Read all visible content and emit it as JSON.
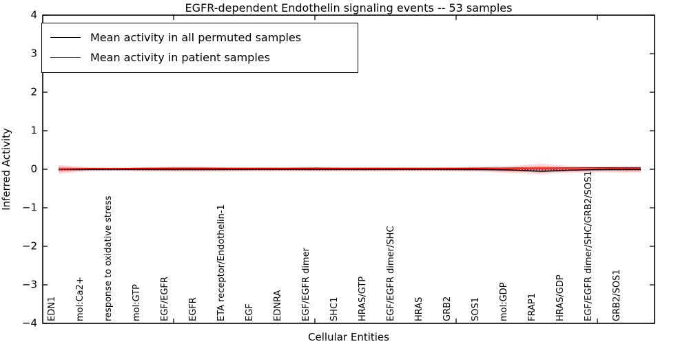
{
  "title": "EGFR-dependent Endothelin signaling events -- 53 samples",
  "axes": {
    "ylabel": "Inferred Activity",
    "xlabel": "Cellular Entities",
    "ytick_labels": [
      "4",
      "3",
      "2",
      "1",
      "0",
      "−1",
      "−2",
      "−3",
      "−4"
    ]
  },
  "legend": {
    "items": [
      {
        "label": "Mean activity in all permuted samples",
        "color": "#000000"
      },
      {
        "label": "Mean activity in patient samples",
        "color": "#ff0000"
      }
    ]
  },
  "chart_data": {
    "type": "line",
    "title": "EGFR-dependent Endothelin signaling events -- 53 samples",
    "xlabel": "Cellular Entities",
    "ylabel": "Inferred Activity",
    "ylim": [
      -4,
      4
    ],
    "yticks": [
      4,
      3,
      2,
      1,
      0,
      -1,
      -2,
      -3,
      -4
    ],
    "x_major_ticks": [
      5,
      10,
      15,
      20
    ],
    "x": [
      1,
      2,
      3,
      4,
      5,
      6,
      7,
      8,
      9,
      10,
      11,
      12,
      13,
      14,
      15,
      16,
      17,
      18,
      19,
      20,
      21
    ],
    "categories": [
      "EDN1",
      "mol:Ca2+",
      "response to oxidative stress",
      "mol:GTP",
      "EGF/EGFR",
      "EGFR",
      "ETA receptor/Endothelin-1",
      "EGF",
      "EDNRA",
      "EGF/EGFR dimer",
      "SHC1",
      "HRAS/GTP",
      "EGF/EGFR dimer/SHC",
      "HRAS",
      "GRB2",
      "SOS1",
      "mol:GDP",
      "FRAP1",
      "HRAS/GDP",
      "EGF/EGFR dimer/SHC/GRB2/SOS1",
      "GRB2/SOS1"
    ],
    "grid": false,
    "legend_position": "upper left",
    "zero_line": {
      "style": "dotted",
      "color": "#000000",
      "y": 0
    },
    "series": [
      {
        "name": "Mean activity in all permuted samples",
        "color": "#000000",
        "values": [
          0,
          0,
          0,
          0,
          0,
          0,
          0,
          0,
          0,
          0,
          0,
          0,
          0,
          0,
          0,
          -0.005,
          -0.02,
          -0.055,
          -0.025,
          -0.005,
          0
        ]
      },
      {
        "name": "Mean activity in patient samples",
        "color": "#ff0000",
        "values": [
          0.005,
          0.02,
          0.02,
          0.025,
          0.03,
          0.03,
          0.025,
          0.025,
          0.025,
          0.03,
          0.025,
          0.025,
          0.025,
          0.025,
          0.025,
          0.03,
          0.03,
          0.03,
          0.035,
          0.04,
          0.04
        ]
      }
    ],
    "bands": [
      {
        "name": "permuted-samples spread",
        "color": "rgba(110,110,110,0.30)",
        "upper": [
          0.03,
          0.03,
          0.03,
          0.03,
          0.03,
          0.03,
          0.03,
          0.03,
          0.03,
          0.03,
          0.03,
          0.03,
          0.03,
          0.03,
          0.03,
          0.025,
          0.01,
          -0.025,
          0.005,
          0.025,
          0.03
        ],
        "lower": [
          -0.03,
          -0.03,
          -0.03,
          -0.03,
          -0.03,
          -0.03,
          -0.03,
          -0.03,
          -0.03,
          -0.03,
          -0.03,
          -0.03,
          -0.03,
          -0.03,
          -0.03,
          -0.035,
          -0.05,
          -0.085,
          -0.055,
          -0.035,
          -0.03
        ]
      },
      {
        "name": "patient-samples spread (outer)",
        "color": "rgba(255,0,0,0.16)",
        "upper": [
          0.11,
          0.05,
          0.04,
          0.055,
          0.065,
          0.065,
          0.055,
          0.05,
          0.05,
          0.06,
          0.05,
          0.055,
          0.05,
          0.05,
          0.055,
          0.065,
          0.09,
          0.145,
          0.09,
          0.07,
          0.08
        ],
        "lower": [
          -0.11,
          -0.05,
          -0.04,
          -0.055,
          -0.065,
          -0.065,
          -0.06,
          -0.05,
          -0.05,
          -0.06,
          -0.05,
          -0.055,
          -0.05,
          -0.05,
          -0.055,
          -0.07,
          -0.1,
          -0.125,
          -0.09,
          -0.075,
          -0.085
        ]
      },
      {
        "name": "patient-samples spread (inner)",
        "color": "rgba(255,0,0,0.32)",
        "upper": [
          0.06,
          0.03,
          0.025,
          0.03,
          0.035,
          0.035,
          0.03,
          0.03,
          0.03,
          0.035,
          0.03,
          0.03,
          0.03,
          0.03,
          0.03,
          0.035,
          0.05,
          0.075,
          0.05,
          0.045,
          0.05
        ],
        "lower": [
          -0.055,
          -0.025,
          -0.02,
          -0.03,
          -0.035,
          -0.035,
          -0.03,
          -0.025,
          -0.025,
          -0.03,
          -0.025,
          -0.03,
          -0.025,
          -0.025,
          -0.03,
          -0.035,
          -0.05,
          -0.06,
          -0.045,
          -0.04,
          -0.045
        ]
      }
    ]
  }
}
